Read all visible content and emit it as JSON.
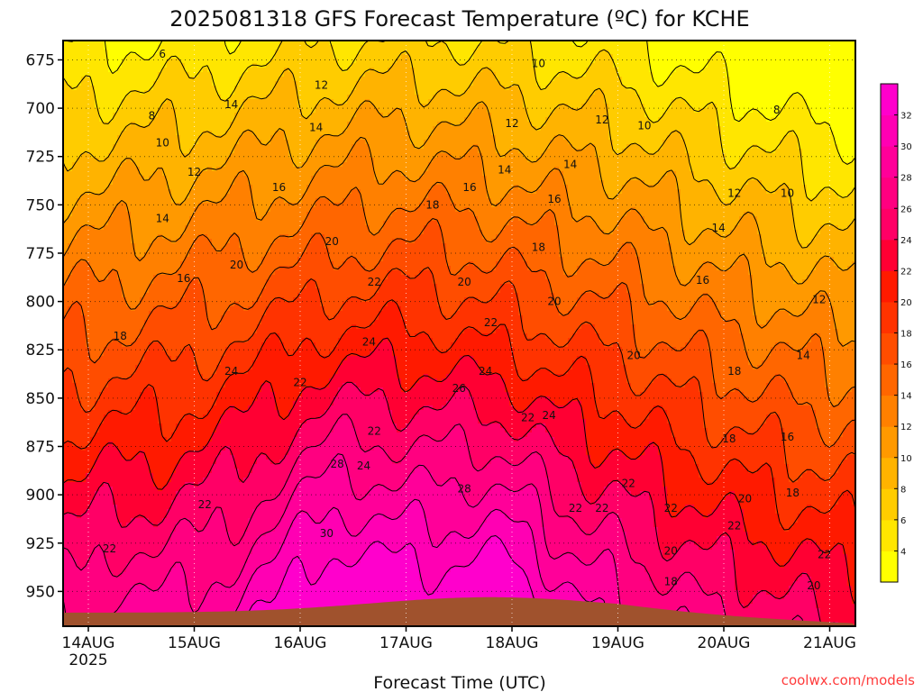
{
  "chart_data": {
    "type": "heatmap",
    "title": "2025081318 GFS Forecast Temperature (ºC) for KCHE",
    "xlabel": "Forecast Time (UTC)",
    "ylabel": "",
    "credit": "coolwx.com/models",
    "x_ticks": [
      "14AUG",
      "15AUG",
      "16AUG",
      "17AUG",
      "18AUG",
      "19AUG",
      "20AUG",
      "21AUG"
    ],
    "x_year": "2025",
    "y_ticks": [
      675,
      700,
      725,
      750,
      775,
      800,
      825,
      850,
      875,
      900,
      925,
      950
    ],
    "ylim": [
      665,
      968
    ],
    "y_inverted": true,
    "grid": true,
    "colorbar": {
      "ticks": [
        4,
        6,
        8,
        10,
        12,
        14,
        16,
        18,
        20,
        22,
        24,
        26,
        28,
        30,
        32
      ],
      "range": [
        2,
        34
      ],
      "colors": [
        "#ffff00",
        "#ffe600",
        "#ffcc00",
        "#ffb300",
        "#ff9900",
        "#ff8000",
        "#ff6600",
        "#ff4d00",
        "#ff3300",
        "#ff1a00",
        "#ff0033",
        "#ff0066",
        "#ff0080",
        "#ff0099",
        "#ff00b3",
        "#ff00cc"
      ]
    },
    "terrain_color": "#a0522d",
    "contour_labels": [
      {
        "t": 0.7,
        "p": 672,
        "v": "6"
      },
      {
        "t": 0.6,
        "p": 704,
        "v": "8"
      },
      {
        "t": 0.7,
        "p": 718,
        "v": "10"
      },
      {
        "t": 1.0,
        "p": 733,
        "v": "12"
      },
      {
        "t": 0.7,
        "p": 757,
        "v": "14"
      },
      {
        "t": 0.9,
        "p": 788,
        "v": "16"
      },
      {
        "t": 0.3,
        "p": 818,
        "v": "18"
      },
      {
        "t": 0.2,
        "p": 928,
        "v": "22"
      },
      {
        "t": 1.1,
        "p": 905,
        "v": "22"
      },
      {
        "t": 1.4,
        "p": 781,
        "v": "20"
      },
      {
        "t": 1.35,
        "p": 698,
        "v": "14"
      },
      {
        "t": 1.8,
        "p": 741,
        "v": "16"
      },
      {
        "t": 2.2,
        "p": 688,
        "v": "12"
      },
      {
        "t": 2.15,
        "p": 710,
        "v": "14"
      },
      {
        "t": 2.3,
        "p": 769,
        "v": "20"
      },
      {
        "t": 1.35,
        "p": 836,
        "v": "24"
      },
      {
        "t": 2.0,
        "p": 842,
        "v": "22"
      },
      {
        "t": 2.65,
        "p": 821,
        "v": "24"
      },
      {
        "t": 2.7,
        "p": 867,
        "v": "22"
      },
      {
        "t": 2.6,
        "p": 885,
        "v": "24"
      },
      {
        "t": 2.35,
        "p": 884,
        "v": "28"
      },
      {
        "t": 2.25,
        "p": 920,
        "v": "30"
      },
      {
        "t": 2.7,
        "p": 790,
        "v": "22"
      },
      {
        "t": 3.25,
        "p": 750,
        "v": "18"
      },
      {
        "t": 3.55,
        "p": 790,
        "v": "20"
      },
      {
        "t": 3.8,
        "p": 811,
        "v": "22"
      },
      {
        "t": 3.5,
        "p": 845,
        "v": "26"
      },
      {
        "t": 3.75,
        "p": 836,
        "v": "24"
      },
      {
        "t": 3.55,
        "p": 897,
        "v": "28"
      },
      {
        "t": 3.6,
        "p": 741,
        "v": "16"
      },
      {
        "t": 4.0,
        "p": 708,
        "v": "12"
      },
      {
        "t": 3.93,
        "p": 732,
        "v": "14"
      },
      {
        "t": 4.25,
        "p": 772,
        "v": "18"
      },
      {
        "t": 4.4,
        "p": 747,
        "v": "16"
      },
      {
        "t": 4.55,
        "p": 729,
        "v": "14"
      },
      {
        "t": 4.25,
        "p": 677,
        "v": "10"
      },
      {
        "t": 4.15,
        "p": 860,
        "v": "22"
      },
      {
        "t": 4.35,
        "p": 859,
        "v": "24"
      },
      {
        "t": 4.4,
        "p": 800,
        "v": "20"
      },
      {
        "t": 4.6,
        "p": 907,
        "v": "22"
      },
      {
        "t": 4.85,
        "p": 907,
        "v": "22"
      },
      {
        "t": 4.85,
        "p": 706,
        "v": "12"
      },
      {
        "t": 5.25,
        "p": 709,
        "v": "10"
      },
      {
        "t": 5.15,
        "p": 828,
        "v": "20"
      },
      {
        "t": 5.1,
        "p": 894,
        "v": "22"
      },
      {
        "t": 5.5,
        "p": 907,
        "v": "22"
      },
      {
        "t": 5.5,
        "p": 929,
        "v": "20"
      },
      {
        "t": 5.5,
        "p": 945,
        "v": "18"
      },
      {
        "t": 5.8,
        "p": 789,
        "v": "16"
      },
      {
        "t": 5.95,
        "p": 762,
        "v": "14"
      },
      {
        "t": 6.1,
        "p": 744,
        "v": "12"
      },
      {
        "t": 6.1,
        "p": 836,
        "v": "18"
      },
      {
        "t": 6.05,
        "p": 871,
        "v": "18"
      },
      {
        "t": 6.1,
        "p": 916,
        "v": "22"
      },
      {
        "t": 6.2,
        "p": 902,
        "v": "20"
      },
      {
        "t": 6.5,
        "p": 701,
        "v": "8"
      },
      {
        "t": 6.6,
        "p": 744,
        "v": "10"
      },
      {
        "t": 6.9,
        "p": 799,
        "v": "12"
      },
      {
        "t": 6.75,
        "p": 828,
        "v": "14"
      },
      {
        "t": 6.6,
        "p": 870,
        "v": "16"
      },
      {
        "t": 6.65,
        "p": 899,
        "v": "18"
      },
      {
        "t": 6.95,
        "p": 931,
        "v": "22"
      },
      {
        "t": 6.85,
        "p": 947,
        "v": "20"
      }
    ]
  }
}
